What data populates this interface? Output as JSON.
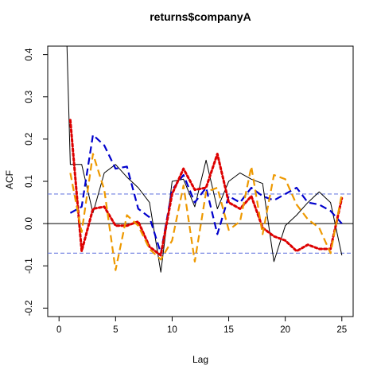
{
  "chart_data": {
    "type": "line",
    "title": "returns$companyA",
    "xlabel": "Lag",
    "ylabel": "ACF",
    "xlim": [
      -1,
      26
    ],
    "ylim": [
      -0.22,
      0.42
    ],
    "xticks": [
      0,
      5,
      10,
      15,
      20,
      25
    ],
    "yticks": [
      -0.2,
      -0.1,
      0.0,
      0.1,
      0.2,
      0.3,
      0.4
    ],
    "ytick_labels": [
      "-0.2",
      "-0.1",
      "0.0",
      "0.1",
      "0.2",
      "0.3",
      "0.4"
    ],
    "confidence_bound": 0.07,
    "grid": false,
    "series": [
      {
        "color": "#000000",
        "style": "solid",
        "x": [
          0.7,
          1,
          2,
          3,
          4,
          5,
          6,
          7,
          8,
          9,
          10,
          11,
          12,
          13,
          14,
          15,
          16,
          17,
          18,
          19,
          20,
          21,
          22,
          23,
          24,
          25
        ],
        "values": [
          0.42,
          0.14,
          0.14,
          0.025,
          0.12,
          0.14,
          0.11,
          0.085,
          0.05,
          -0.115,
          0.1,
          0.105,
          0.04,
          0.15,
          0.035,
          0.1,
          0.12,
          0.105,
          0.095,
          -0.09,
          -0.005,
          0.02,
          0.05,
          0.075,
          0.05,
          -0.075
        ]
      },
      {
        "color": "#0000cc",
        "style": "dashed",
        "x": [
          1,
          2,
          3,
          4,
          5,
          6,
          7,
          8,
          9,
          10,
          11,
          12,
          13,
          14,
          15,
          16,
          17,
          18,
          19,
          20,
          21,
          22,
          23,
          24,
          25
        ],
        "values": [
          0.025,
          0.04,
          0.21,
          0.185,
          0.13,
          0.135,
          0.035,
          0.015,
          -0.07,
          0.08,
          0.115,
          0.05,
          0.085,
          -0.025,
          0.065,
          0.05,
          0.085,
          0.065,
          0.055,
          0.07,
          0.085,
          0.05,
          0.045,
          0.03,
          0.0
        ]
      },
      {
        "color": "#dd0000",
        "style": "dotted",
        "x": [
          1,
          2,
          3,
          4,
          5,
          6,
          7,
          8,
          9,
          10,
          11,
          12,
          13,
          14,
          15,
          16,
          17,
          18,
          19,
          20,
          21,
          22,
          23,
          24,
          25
        ],
        "values": [
          0.245,
          -0.065,
          0.035,
          0.04,
          -0.005,
          -0.005,
          0.005,
          -0.055,
          -0.075,
          0.07,
          0.13,
          0.08,
          0.085,
          0.165,
          0.05,
          0.035,
          0.065,
          -0.01,
          -0.03,
          -0.04,
          -0.065,
          -0.05,
          -0.06,
          -0.06,
          0.06
        ]
      },
      {
        "color": "#ee9900",
        "style": "dashed",
        "x": [
          1,
          2,
          3,
          4,
          5,
          6,
          7,
          8,
          9,
          10,
          11,
          12,
          13,
          14,
          15,
          16,
          17,
          18,
          19,
          20,
          21,
          22,
          23,
          24,
          25
        ],
        "values": [
          0.12,
          -0.02,
          0.165,
          0.08,
          -0.11,
          0.02,
          -0.005,
          -0.06,
          -0.085,
          -0.04,
          0.09,
          -0.09,
          0.075,
          0.085,
          -0.015,
          0.005,
          0.135,
          -0.025,
          0.115,
          0.105,
          0.045,
          0.01,
          -0.01,
          -0.07,
          0.07
        ]
      }
    ]
  }
}
